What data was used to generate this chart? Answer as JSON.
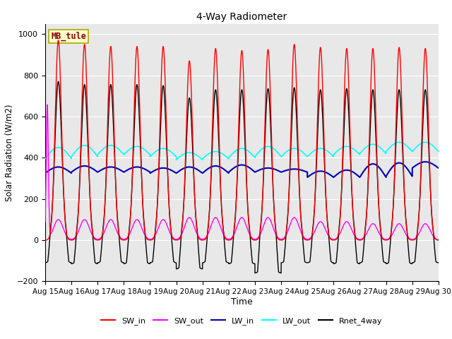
{
  "title": "4-Way Radiometer",
  "xlabel": "Time",
  "ylabel": "Solar Radiation (W/m2)",
  "label_box": "MB_tule",
  "ylim": [
    -200,
    1050
  ],
  "n_days": 15,
  "start_day": 15,
  "colors": {
    "SW_in": "#FF0000",
    "SW_out": "#FF00FF",
    "LW_in": "#0000BB",
    "LW_out": "#00FFFF",
    "Rnet_4way": "#000000"
  },
  "bg_color": "#E8E8E8",
  "grid_color": "#FFFFFF",
  "SW_in_peak": [
    970,
    950,
    940,
    940,
    940,
    870,
    930,
    920,
    925,
    950,
    935,
    930,
    930,
    935,
    930
  ],
  "SW_out_peak": [
    100,
    100,
    100,
    100,
    100,
    110,
    110,
    110,
    110,
    110,
    90,
    90,
    80,
    80,
    80
  ],
  "LW_in_base": [
    325,
    330,
    330,
    330,
    325,
    325,
    325,
    330,
    330,
    330,
    305,
    305,
    305,
    310,
    350
  ],
  "LW_in_peak_delta": [
    30,
    30,
    25,
    25,
    25,
    30,
    35,
    35,
    20,
    15,
    30,
    35,
    65,
    65,
    30
  ],
  "LW_out_base": [
    395,
    405,
    415,
    415,
    405,
    390,
    395,
    400,
    405,
    405,
    405,
    415,
    420,
    430,
    430
  ],
  "LW_out_peak_delta": [
    55,
    55,
    45,
    40,
    40,
    35,
    35,
    45,
    50,
    40,
    40,
    40,
    45,
    45,
    45
  ],
  "Rnet_peak": [
    770,
    755,
    755,
    755,
    750,
    690,
    730,
    730,
    735,
    740,
    730,
    735,
    730,
    730,
    730
  ],
  "Rnet_night": [
    -110,
    -115,
    -110,
    -115,
    -110,
    -140,
    -110,
    -115,
    -160,
    -110,
    -110,
    -115,
    -110,
    -115,
    -110
  ]
}
